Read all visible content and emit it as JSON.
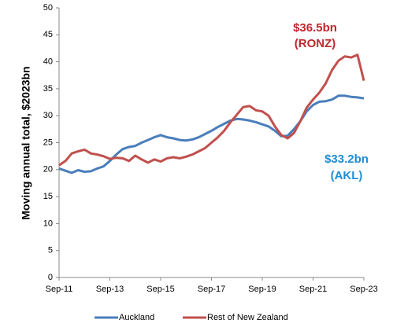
{
  "chart_data": {
    "type": "line",
    "y_label": "Moving annual total, $2023bn",
    "categories": [
      "Sep-11",
      null,
      null,
      null,
      null,
      null,
      null,
      null,
      "Sep-13",
      null,
      null,
      null,
      null,
      null,
      null,
      null,
      "Sep-15",
      null,
      null,
      null,
      null,
      null,
      null,
      null,
      "Sep-17",
      null,
      null,
      null,
      null,
      null,
      null,
      null,
      "Sep-19",
      null,
      null,
      null,
      null,
      null,
      null,
      null,
      "Sep-21",
      null,
      null,
      null,
      null,
      null,
      null,
      null,
      "Sep-23"
    ],
    "series": [
      {
        "name": "Auckland",
        "color": "#4a7ebb",
        "values": [
          20.2,
          19.8,
          19.4,
          19.9,
          19.6,
          19.7,
          20.2,
          20.6,
          21.6,
          22.8,
          23.8,
          24.2,
          24.4,
          25.0,
          25.5,
          26.0,
          26.4,
          26.0,
          25.8,
          25.5,
          25.4,
          25.6,
          26.0,
          26.6,
          27.2,
          27.9,
          28.5,
          29.1,
          29.4,
          29.3,
          29.1,
          28.8,
          28.4,
          28.0,
          27.2,
          26.2,
          26.3,
          27.5,
          29.0,
          30.8,
          32.0,
          32.6,
          32.7,
          33.0,
          33.7,
          33.7,
          33.5,
          33.4,
          33.2
        ]
      },
      {
        "name": "Rest of New Zealand",
        "color": "#c0504d",
        "values": [
          20.8,
          21.6,
          23.0,
          23.4,
          23.7,
          23.0,
          22.8,
          22.5,
          22.0,
          22.2,
          22.1,
          21.6,
          22.6,
          21.9,
          21.3,
          21.9,
          21.5,
          22.1,
          22.3,
          22.1,
          22.4,
          22.8,
          23.4,
          24.0,
          25.0,
          26.0,
          27.2,
          28.8,
          30.2,
          31.6,
          31.8,
          31.0,
          30.8,
          30.0,
          28.0,
          26.4,
          25.8,
          26.8,
          29.0,
          31.5,
          33.0,
          34.3,
          36.0,
          38.5,
          40.2,
          41.0,
          40.8,
          41.3,
          36.5
        ]
      }
    ],
    "ylim": [
      0,
      50
    ],
    "yticks": [
      0,
      5,
      10,
      15,
      20,
      25,
      30,
      35,
      40,
      45,
      50
    ],
    "grid": false,
    "legend": "bottom",
    "annotations": [
      {
        "lines": [
          "$36.5bn",
          "(RONZ)"
        ],
        "color": "#c0272d"
      },
      {
        "lines": [
          "$33.2bn",
          "(AKL)"
        ],
        "color": "#1f8dd6"
      }
    ]
  }
}
